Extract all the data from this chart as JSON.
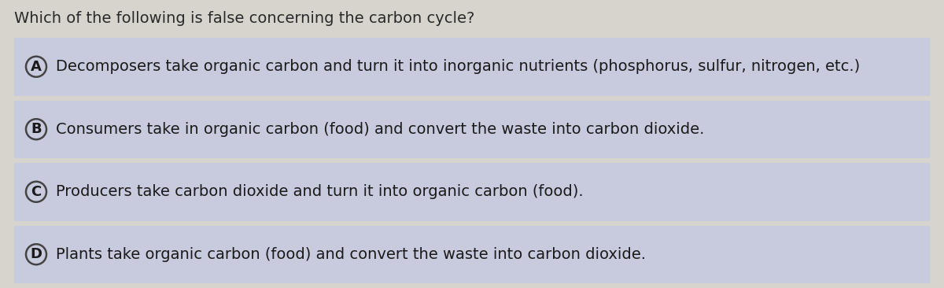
{
  "question": "Which of the following is false concerning the carbon cycle?",
  "options": [
    {
      "label": "A",
      "text": "Decomposers take organic carbon and turn it into inorganic nutrients (phosphorus, sulfur, nitrogen, etc.)"
    },
    {
      "label": "B",
      "text": "Consumers take in organic carbon (food) and convert the waste into carbon dioxide."
    },
    {
      "label": "C",
      "text": "Producers take carbon dioxide and turn it into organic carbon (food)."
    },
    {
      "label": "D",
      "text": "Plants take organic carbon (food) and convert the waste into carbon dioxide."
    }
  ],
  "bg_color": "#d6d4cc",
  "option_bg_color": "#c8cade",
  "question_color": "#2a2a2a",
  "option_text_color": "#1a1a1a",
  "circle_edge_color": "#444444",
  "label_color": "#1a1a1a",
  "question_fontsize": 14,
  "option_fontsize": 14,
  "label_fontsize": 13,
  "fig_width": 12.0,
  "fig_height": 3.66,
  "dpi": 100
}
